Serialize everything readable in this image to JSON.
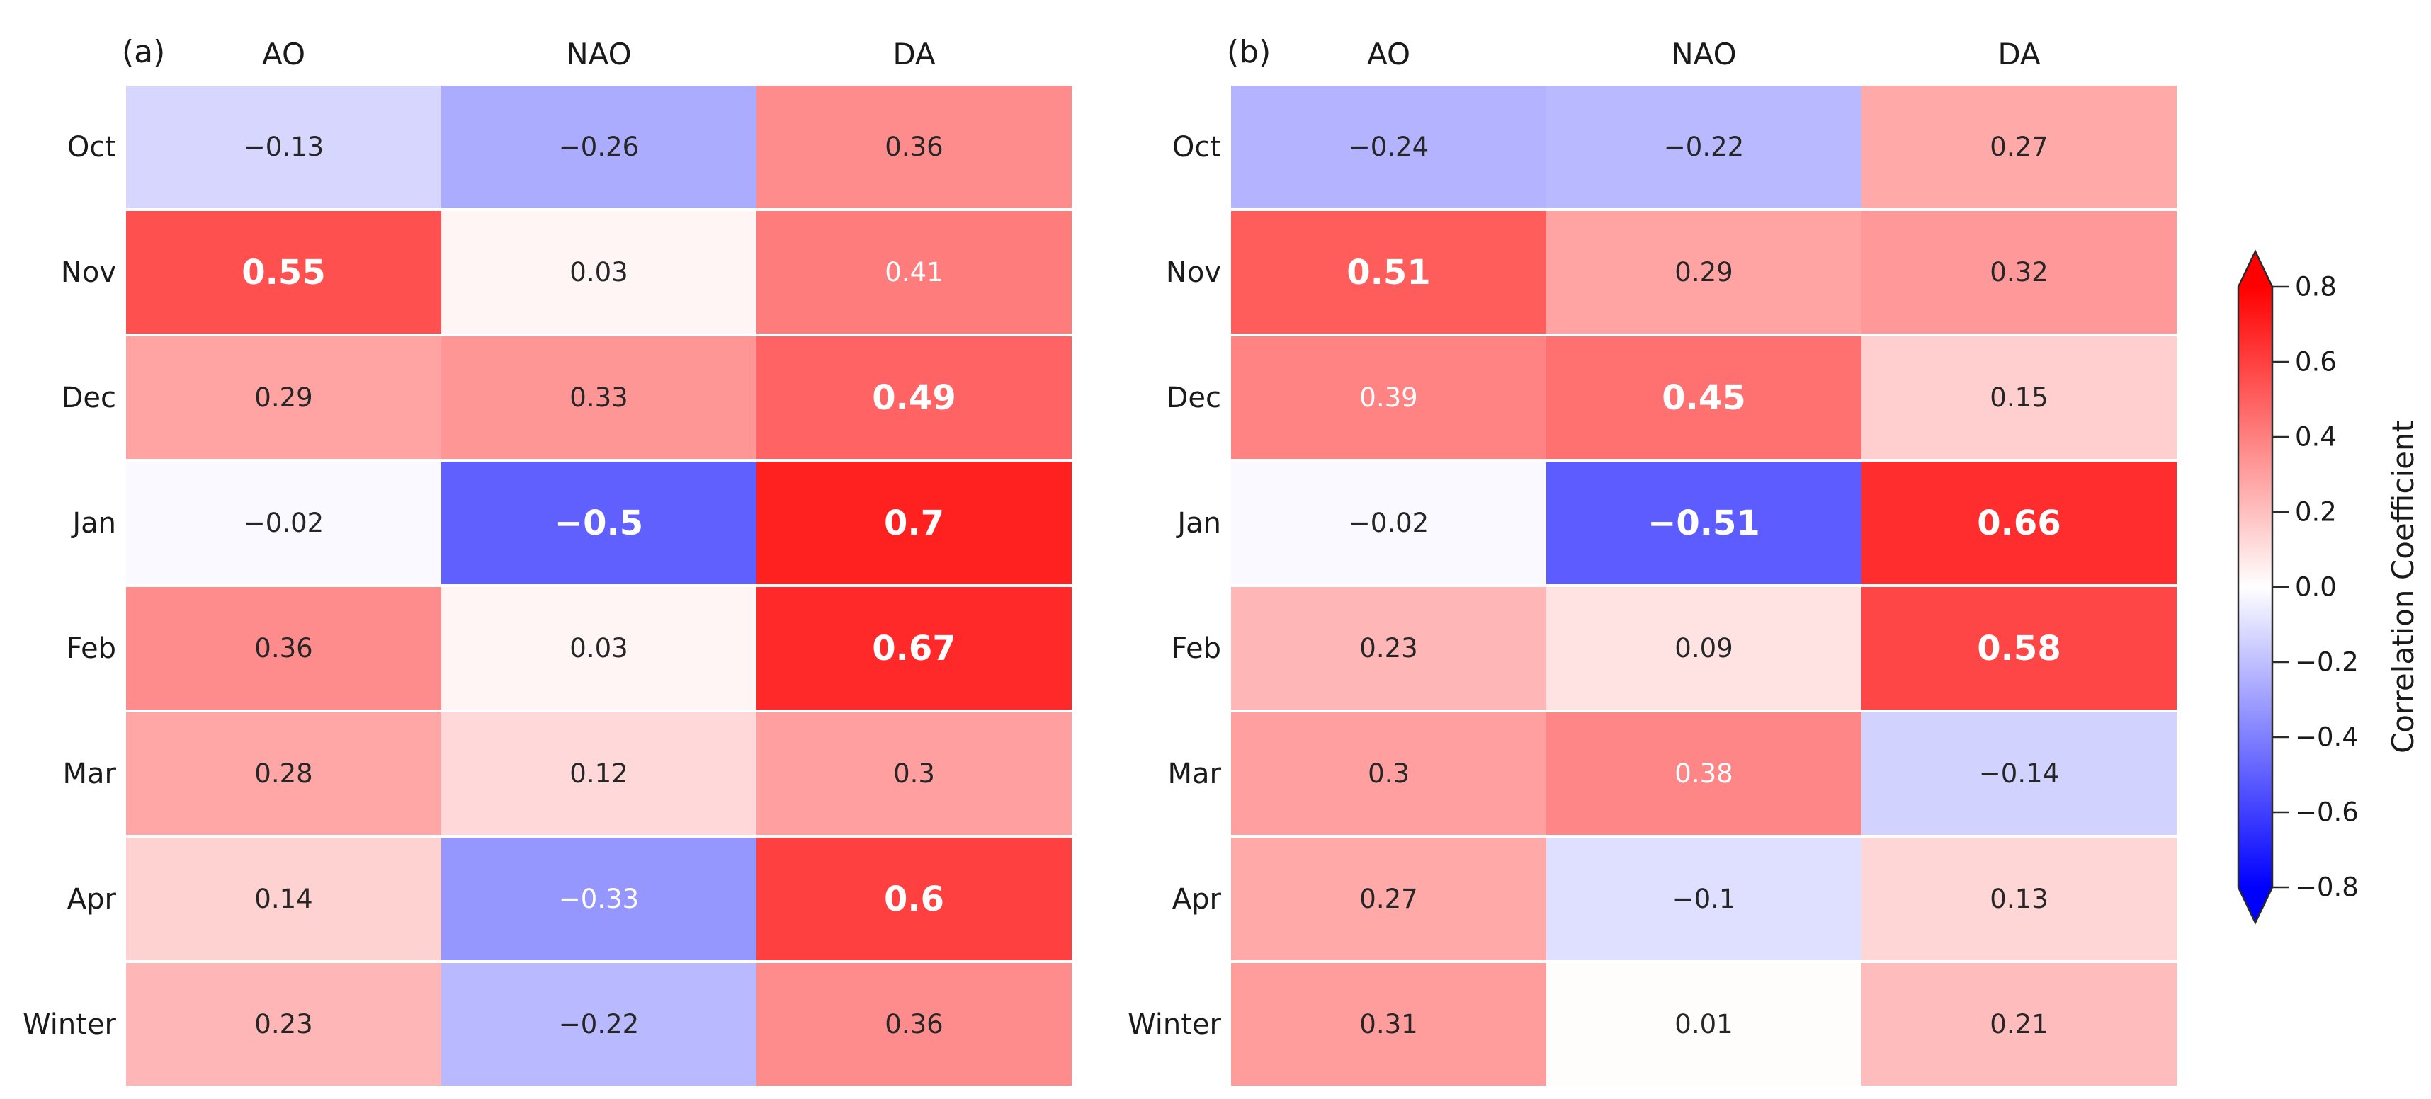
{
  "colors": {
    "dark_text": "#262626",
    "white_text": "#ffffff",
    "label_text": "#1a1a1a",
    "cmap_positive_end": "#ff0000",
    "cmap_midpoint": "#ffffff",
    "cmap_negative_end": "#0000ff",
    "colorbar_outline": "#2a2a2a"
  },
  "chart_data": [
    {
      "type": "heatmap",
      "panel_tag": "(a)",
      "columns": [
        "AO",
        "NAO",
        "DA"
      ],
      "rows": [
        "Oct",
        "Nov",
        "Dec",
        "Jan",
        "Feb",
        "Mar",
        "Apr",
        "Winter"
      ],
      "colormap": "bwr",
      "vmin": -0.8,
      "vmax": 0.8,
      "values": [
        [
          -0.13,
          -0.26,
          0.36
        ],
        [
          0.55,
          0.03,
          0.41
        ],
        [
          0.29,
          0.33,
          0.49
        ],
        [
          -0.02,
          -0.5,
          0.7
        ],
        [
          0.36,
          0.03,
          0.67
        ],
        [
          0.28,
          0.12,
          0.3
        ],
        [
          0.14,
          -0.33,
          0.6
        ],
        [
          0.23,
          -0.22,
          0.36
        ]
      ],
      "labels": [
        [
          "−0.13",
          "−0.26",
          "0.36"
        ],
        [
          "0.55",
          "0.03",
          "0.41"
        ],
        [
          "0.29",
          "0.33",
          "0.49"
        ],
        [
          "−0.02",
          "−0.5",
          "0.7"
        ],
        [
          "0.36",
          "0.03",
          "0.67"
        ],
        [
          "0.28",
          "0.12",
          "0.3"
        ],
        [
          "0.14",
          "−0.33",
          "0.6"
        ],
        [
          "0.23",
          "−0.22",
          "0.36"
        ]
      ],
      "emphasis": [
        [
          "plain",
          "plain",
          "plain"
        ],
        [
          "bold-white",
          "plain",
          "white"
        ],
        [
          "plain",
          "plain",
          "bold-white"
        ],
        [
          "plain",
          "bold-white",
          "bold-white"
        ],
        [
          "plain",
          "plain",
          "bold-white"
        ],
        [
          "plain",
          "plain",
          "plain"
        ],
        [
          "plain",
          "white",
          "bold-white"
        ],
        [
          "plain",
          "plain",
          "plain"
        ]
      ]
    },
    {
      "type": "heatmap",
      "panel_tag": "(b)",
      "columns": [
        "AO",
        "NAO",
        "DA"
      ],
      "rows": [
        "Oct",
        "Nov",
        "Dec",
        "Jan",
        "Feb",
        "Mar",
        "Apr",
        "Winter"
      ],
      "colormap": "bwr",
      "vmin": -0.8,
      "vmax": 0.8,
      "values": [
        [
          -0.24,
          -0.22,
          0.27
        ],
        [
          0.51,
          0.29,
          0.32
        ],
        [
          0.39,
          0.45,
          0.15
        ],
        [
          -0.02,
          -0.51,
          0.66
        ],
        [
          0.23,
          0.09,
          0.58
        ],
        [
          0.3,
          0.38,
          -0.14
        ],
        [
          0.27,
          -0.1,
          0.13
        ],
        [
          0.31,
          0.01,
          0.21
        ]
      ],
      "labels": [
        [
          "−0.24",
          "−0.22",
          "0.27"
        ],
        [
          "0.51",
          "0.29",
          "0.32"
        ],
        [
          "0.39",
          "0.45",
          "0.15"
        ],
        [
          "−0.02",
          "−0.51",
          "0.66"
        ],
        [
          "0.23",
          "0.09",
          "0.58"
        ],
        [
          "0.3",
          "0.38",
          "−0.14"
        ],
        [
          "0.27",
          "−0.1",
          "0.13"
        ],
        [
          "0.31",
          "0.01",
          "0.21"
        ]
      ],
      "emphasis": [
        [
          "plain",
          "plain",
          "plain"
        ],
        [
          "bold-white",
          "plain",
          "plain"
        ],
        [
          "white",
          "bold-white",
          "plain"
        ],
        [
          "plain",
          "bold-white",
          "bold-white"
        ],
        [
          "plain",
          "plain",
          "bold-white"
        ],
        [
          "plain",
          "white",
          "plain"
        ],
        [
          "plain",
          "plain",
          "plain"
        ],
        [
          "plain",
          "plain",
          "plain"
        ]
      ]
    }
  ],
  "colorbar": {
    "label": "Correlation Coefficient",
    "ticks": [
      "0.8",
      "0.6",
      "0.4",
      "0.2",
      "0.0",
      "−0.2",
      "−0.4",
      "−0.6",
      "−0.8"
    ],
    "orientation": "vertical",
    "extend": "both"
  }
}
